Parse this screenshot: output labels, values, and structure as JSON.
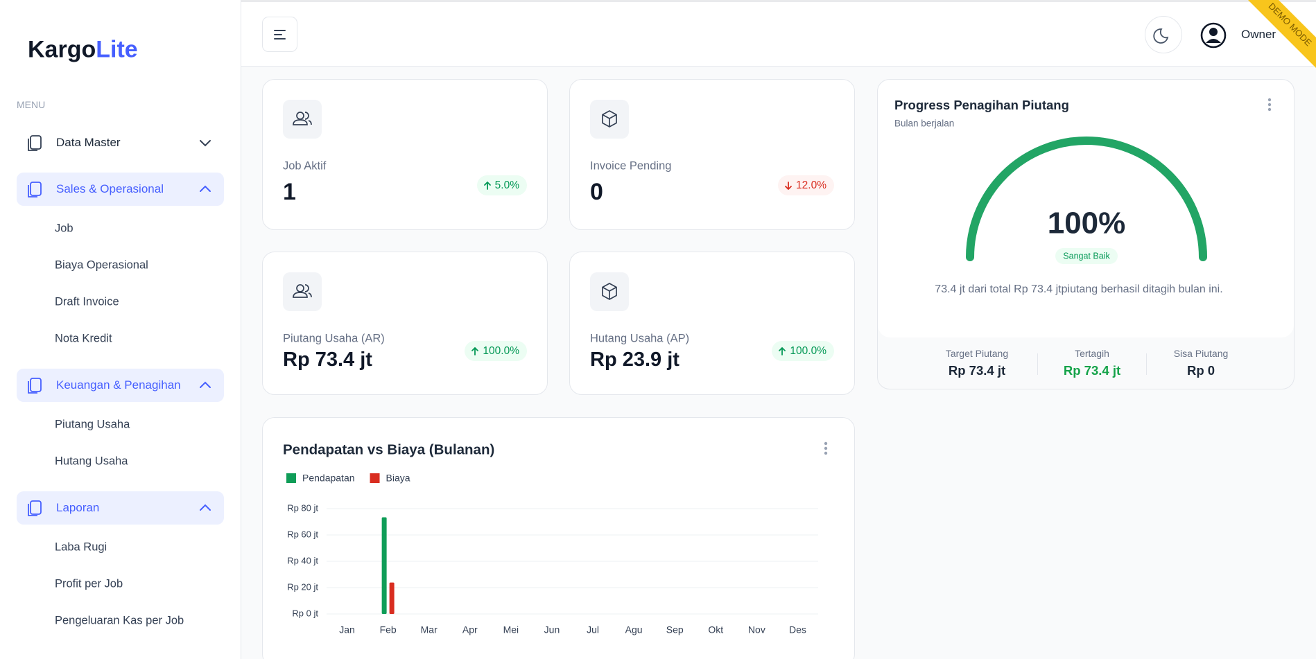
{
  "sidebar": {
    "brand": [
      "Kargo",
      "Lite"
    ],
    "menu_label": "MENU",
    "groups": [
      {
        "label": "Data Master",
        "expanded": false
      },
      {
        "label": "Sales & Operasional",
        "expanded": true,
        "items": [
          "Job",
          "Biaya Operasional",
          "Draft Invoice",
          "Nota Kredit"
        ]
      },
      {
        "label": "Keuangan & Penagihan",
        "expanded": true,
        "items": [
          "Piutang Usaha",
          "Hutang Usaha"
        ]
      },
      {
        "label": "Laporan",
        "expanded": true,
        "items": [
          "Laba Rugi",
          "Profit per Job",
          "Pengeluaran Kas per Job"
        ]
      }
    ]
  },
  "header": {
    "user": "Owner",
    "ribbon": "DEMO MODE"
  },
  "cards": [
    {
      "label": "Job Aktif",
      "value": "1",
      "change": "5.0%",
      "trend": "up"
    },
    {
      "label": "Invoice Pending",
      "value": "0",
      "change": "12.0%",
      "trend": "down"
    },
    {
      "label": "Piutang Usaha (AR)",
      "value": "Rp 73.4 jt",
      "change": "100.0%",
      "trend": "up"
    },
    {
      "label": "Hutang Usaha (AP)",
      "value": "Rp 23.9 jt",
      "change": "100.0%",
      "trend": "up"
    }
  ],
  "chart_data": [
    {
      "type": "gauge",
      "title": "Progress Penagihan Piutang",
      "subtitle": "Bulan berjalan",
      "values": [
        100
      ],
      "value_labels": [
        "100%"
      ],
      "ylim": [
        0,
        100
      ],
      "color": "#22a565",
      "status": "Sangat Baik",
      "note": "73.4 jt dari total Rp 73.4 jtpiutang berhasil ditagih bulan ini.",
      "stats": [
        {
          "label": "Target Piutang",
          "value": "Rp 73.4 jt",
          "color": "#1d2939"
        },
        {
          "label": "Tertagih",
          "value": "Rp 73.4 jt",
          "color": "#16a34a"
        },
        {
          "label": "Sisa Piutang",
          "value": "Rp 0",
          "color": "#1d2939"
        }
      ]
    },
    {
      "type": "bar",
      "title": "Pendapatan vs Biaya (Bulanan)",
      "categories": [
        "Jan",
        "Feb",
        "Mar",
        "Apr",
        "Mei",
        "Jun",
        "Jul",
        "Agu",
        "Sep",
        "Okt",
        "Nov",
        "Des"
      ],
      "series": [
        {
          "name": "Pendapatan",
          "color": "#0f9d58",
          "values": [
            0,
            73.4,
            0,
            0,
            0,
            0,
            0,
            0,
            0,
            0,
            0,
            0
          ]
        },
        {
          "name": "Biaya",
          "color": "#d92d20",
          "values": [
            0,
            23.9,
            0,
            0,
            0,
            0,
            0,
            0,
            0,
            0,
            0,
            0
          ]
        }
      ],
      "ylim": [
        0,
        80
      ],
      "yticks": [
        {
          "value": 0,
          "label": "Rp 0 jt"
        },
        {
          "value": 20,
          "label": "Rp 20 jt"
        },
        {
          "value": 40,
          "label": "Rp 40 jt"
        },
        {
          "value": 60,
          "label": "Rp 60 jt"
        },
        {
          "value": 80,
          "label": "Rp 80 jt"
        }
      ],
      "grid": true
    }
  ]
}
